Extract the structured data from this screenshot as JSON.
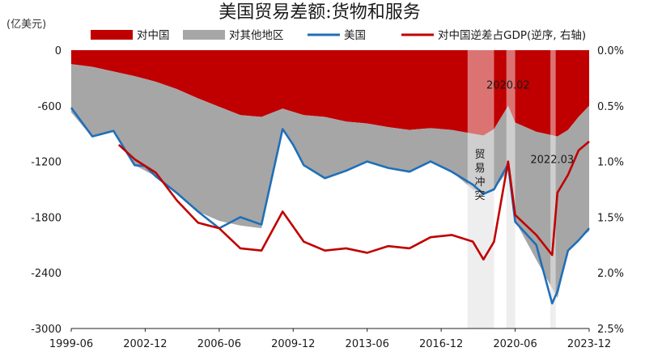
{
  "chart_data": {
    "type": "area",
    "title": "美国贸易差额:货物和服务",
    "unit_label": "(亿美元)",
    "legend": [
      {
        "key": "china",
        "label": "对中国",
        "color": "#c00000",
        "kind": "area"
      },
      {
        "key": "others",
        "label": "对其他地区",
        "color": "#a6a6a6",
        "kind": "area"
      },
      {
        "key": "us",
        "label": "美国",
        "color": "#1f6fb8",
        "kind": "line"
      },
      {
        "key": "gdp",
        "label": "对中国逆差占GDP(逆序, 右轴)",
        "color": "#c00000",
        "kind": "line"
      }
    ],
    "x_ticks": [
      "1999-06",
      "2002-12",
      "2006-06",
      "2009-12",
      "2013-06",
      "2016-12",
      "2020-06",
      "2023-12"
    ],
    "x_range": [
      "1999-06",
      "2023-12"
    ],
    "left_axis": {
      "ticks": [
        "0",
        "-600",
        "-1200",
        "-1800",
        "-2400",
        "-3000"
      ],
      "range": [
        -3000,
        0
      ]
    },
    "right_axis": {
      "ticks": [
        "0.0%",
        "0.5%",
        "1.0%",
        "1.5%",
        "2.0%",
        "2.5%"
      ],
      "range": [
        0,
        2.5
      ],
      "inverted": true
    },
    "shaded_periods": [
      {
        "from": "2018-03",
        "to": "2019-06"
      },
      {
        "from": "2020-01",
        "to": "2020-06"
      },
      {
        "from": "2022-02",
        "to": "2022-05"
      }
    ],
    "annotations": [
      {
        "text": "2020.02",
        "x": "2020-02",
        "y": -380,
        "axis": "left"
      },
      {
        "text": "贸易冲突",
        "x": "2018-10",
        "y": -550,
        "axis": "left",
        "vertical": true
      },
      {
        "text": "2022.03",
        "x": "2022-03",
        "y": -1180,
        "axis": "left"
      }
    ],
    "series": [
      {
        "name": "对中国",
        "key": "china",
        "type": "area",
        "x": [
          "1999-06",
          "2000-06",
          "2001-06",
          "2002-06",
          "2003-06",
          "2004-06",
          "2005-06",
          "2006-06",
          "2007-06",
          "2008-06",
          "2009-06",
          "2010-06",
          "2011-06",
          "2012-06",
          "2013-06",
          "2014-06",
          "2015-06",
          "2016-06",
          "2017-06",
          "2018-06",
          "2018-12",
          "2019-06",
          "2020-02",
          "2020-06",
          "2021-06",
          "2022-06",
          "2022-12",
          "2023-06",
          "2023-12"
        ],
        "values": [
          -150,
          -180,
          -230,
          -280,
          -340,
          -420,
          -520,
          -610,
          -700,
          -720,
          -630,
          -700,
          -720,
          -770,
          -790,
          -830,
          -860,
          -840,
          -860,
          -900,
          -920,
          -850,
          -600,
          -780,
          -880,
          -930,
          -860,
          -720,
          -600
        ]
      },
      {
        "name": "对其他地区",
        "key": "others",
        "type": "area",
        "x": [
          "1999-06",
          "2000-06",
          "2001-06",
          "2002-06",
          "2003-06",
          "2004-06",
          "2005-06",
          "2006-06",
          "2007-06",
          "2008-06",
          "2009-06",
          "2010-06",
          "2011-06",
          "2012-06",
          "2013-06",
          "2014-06",
          "2015-06",
          "2016-06",
          "2017-06",
          "2018-06",
          "2018-12",
          "2019-06",
          "2020-02",
          "2020-06",
          "2021-06",
          "2022-06",
          "2022-12",
          "2023-06",
          "2023-12"
        ],
        "values": [
          -520,
          -760,
          -640,
          -960,
          -1020,
          -1120,
          -1220,
          -1230,
          -1190,
          -1200,
          -220,
          -540,
          -660,
          -530,
          -420,
          -440,
          -460,
          -360,
          -450,
          -600,
          -630,
          -650,
          -700,
          -1060,
          -1380,
          -1740,
          -1300,
          -1320,
          -1350
        ]
      },
      {
        "name": "美国",
        "key": "us",
        "type": "line",
        "x": [
          "1999-06",
          "2000-06",
          "2001-06",
          "2002-06",
          "2002-12",
          "2003-06",
          "2004-06",
          "2005-06",
          "2006-06",
          "2007-06",
          "2008-06",
          "2009-06",
          "2009-12",
          "2010-06",
          "2011-06",
          "2012-06",
          "2013-06",
          "2014-06",
          "2015-06",
          "2016-06",
          "2017-06",
          "2018-06",
          "2018-12",
          "2019-06",
          "2020-02",
          "2020-06",
          "2021-06",
          "2022-03",
          "2022-06",
          "2022-12",
          "2023-06",
          "2023-12"
        ],
        "values": [
          -620,
          -930,
          -870,
          -1240,
          -1250,
          -1360,
          -1540,
          -1740,
          -1920,
          -1800,
          -1880,
          -850,
          -1020,
          -1240,
          -1380,
          -1300,
          -1200,
          -1270,
          -1310,
          -1200,
          -1310,
          -1450,
          -1550,
          -1500,
          -1230,
          -1850,
          -2100,
          -2730,
          -2600,
          -2160,
          -2050,
          -1920
        ]
      },
      {
        "name": "对中国逆差占GDP(逆序, 右轴)",
        "key": "gdp",
        "type": "line",
        "x": [
          "2001-09",
          "2002-06",
          "2003-06",
          "2004-06",
          "2005-06",
          "2006-06",
          "2007-06",
          "2008-06",
          "2009-06",
          "2010-06",
          "2011-06",
          "2012-06",
          "2013-06",
          "2014-06",
          "2015-06",
          "2016-06",
          "2017-06",
          "2018-06",
          "2018-12",
          "2019-06",
          "2020-02",
          "2020-06",
          "2021-06",
          "2022-03",
          "2022-06",
          "2022-12",
          "2023-06",
          "2023-12"
        ],
        "values": [
          0.85,
          0.98,
          1.1,
          1.35,
          1.55,
          1.6,
          1.78,
          1.8,
          1.45,
          1.72,
          1.8,
          1.78,
          1.82,
          1.76,
          1.78,
          1.68,
          1.66,
          1.72,
          1.88,
          1.72,
          1.0,
          1.48,
          1.66,
          1.84,
          1.28,
          1.12,
          0.9,
          0.82
        ]
      }
    ]
  }
}
